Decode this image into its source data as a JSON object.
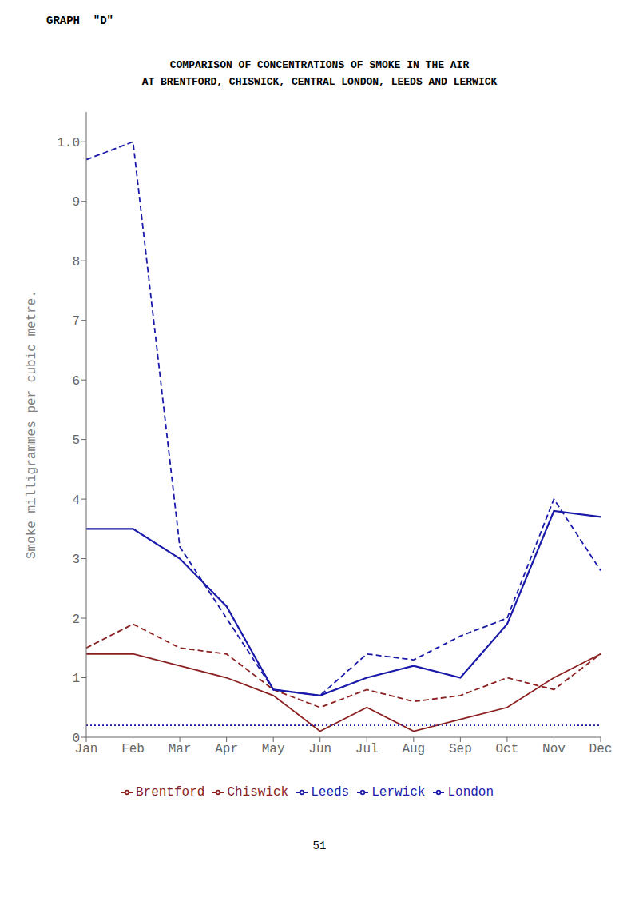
{
  "chart_data": {
    "type": "line",
    "title": "COMPARISON OF CONCENTRATIONS OF SMOKE IN THE AIR",
    "subtitle": "AT BRENTFORD, CHISWICK, CENTRAL LONDON, LEEDS AND LERWICK",
    "annotations": [
      "GRAPH  \"D\"",
      "51"
    ],
    "y_label": "Smoke  milligrammes per cubic metre.",
    "categories": [
      "Jan",
      "Feb",
      "Mar",
      "Apr",
      "May",
      "Jun",
      "Jul",
      "Aug",
      "Sep",
      "Oct",
      "Nov",
      "Dec"
    ],
    "series": [
      {
        "name": "Brentford",
        "color": "#8B2020",
        "line_style": "solid",
        "values": [
          0.14,
          0.14,
          0.12,
          0.1,
          0.07,
          0.01,
          0.05,
          0.01,
          0.03,
          0.05,
          0.1,
          0.14
        ]
      },
      {
        "name": "Chiswick",
        "color": "#8B2020",
        "line_style": "dashed",
        "values": [
          0.15,
          0.19,
          0.15,
          0.14,
          0.08,
          0.05,
          0.08,
          0.06,
          0.07,
          0.1,
          0.08,
          0.14
        ]
      },
      {
        "name": "London",
        "color": "#1a1aaa",
        "line_style": "solid",
        "values": [
          0.35,
          0.35,
          0.3,
          0.22,
          0.08,
          0.07,
          0.1,
          0.12,
          0.1,
          0.19,
          0.38,
          0.37
        ]
      },
      {
        "name": "Leeds",
        "color": "#1a1aaa",
        "line_style": "dashed",
        "values": [
          0.97,
          1.0,
          0.32,
          0.2,
          0.08,
          0.07,
          0.14,
          0.13,
          0.17,
          0.2,
          0.4,
          0.28
        ]
      },
      {
        "name": "Lerwick",
        "color": "#1a1aaa",
        "line_style": "dotted",
        "values": [
          0.02,
          0.02,
          0.02,
          0.02,
          0.02,
          0.02,
          0.02,
          0.02,
          0.02,
          0.02,
          0.02,
          0.02
        ]
      }
    ],
    "ylim": [
      0,
      1.05
    ],
    "yticks": [
      0,
      {
        "value": 0.1,
        "label": "1"
      },
      {
        "value": 0.2,
        "label": "2"
      },
      {
        "value": 0.3,
        "label": "3"
      },
      {
        "value": 0.4,
        "label": "4"
      },
      {
        "value": 0.5,
        "label": "5"
      },
      {
        "value": 0.6,
        "label": "6"
      },
      {
        "value": 0.7,
        "label": "7"
      },
      {
        "value": 0.8,
        "label": "8"
      },
      {
        "value": 0.9,
        "label": "9"
      },
      {
        "value": 1.0,
        "label": "1.0"
      }
    ],
    "grid": false,
    "legend": "bottom"
  }
}
